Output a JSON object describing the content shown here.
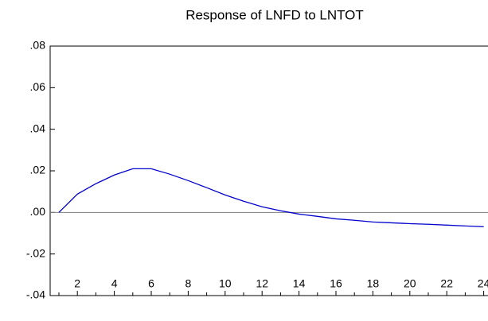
{
  "chart_data": {
    "type": "line",
    "title": "Response of LNFD to LNTOT",
    "categories": [
      null,
      "2",
      null,
      "4",
      null,
      "6",
      null,
      "8",
      null,
      "10",
      null,
      "12",
      null,
      "14",
      null,
      "16",
      null,
      "18",
      null,
      "20",
      null,
      "22",
      null,
      "24"
    ],
    "series": [
      {
        "name": "LNFD",
        "color": "#0000cc",
        "values": [
          0,
          0.0088,
          0.0138,
          0.018,
          0.021,
          0.021,
          0.0184,
          0.0153,
          0.0119,
          0.0084,
          0.0054,
          0.0027,
          0.0008,
          -0.0008,
          -0.0019,
          -0.0031,
          -0.0038,
          -0.0046,
          -0.005,
          -0.0054,
          -0.0057,
          -0.0061,
          -0.0065,
          -0.0069
        ]
      }
    ],
    "ylim": [
      -0.04,
      0.08
    ],
    "yticks": [
      {
        "value": -0.04,
        "label": "-.04"
      },
      {
        "value": -0.02,
        "label": "-.02"
      },
      {
        "value": 0,
        "label": ".00"
      },
      {
        "value": 0.02,
        "label": ".02"
      },
      {
        "value": 0.04,
        "label": ".04"
      },
      {
        "value": 0.06,
        "label": ".06"
      },
      {
        "value": 0.08,
        "label": ".08"
      }
    ],
    "zero_line": true,
    "grid": false
  }
}
